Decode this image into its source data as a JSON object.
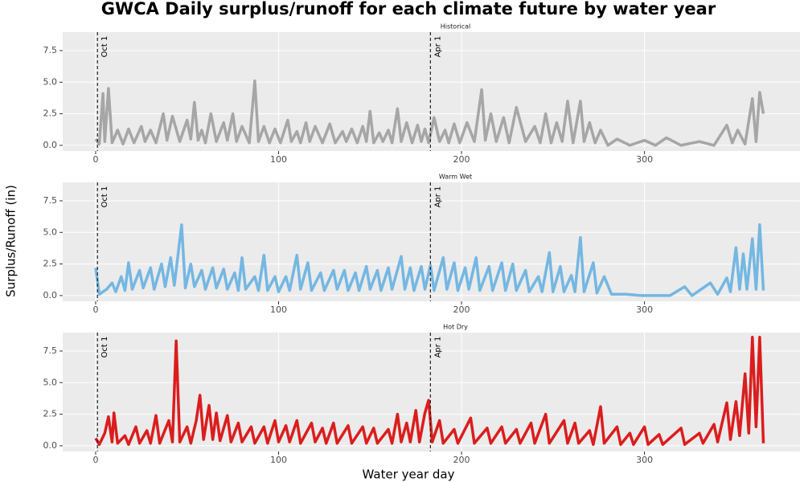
{
  "title": "GWCA Daily surplus/runoff for each climate future by water year",
  "x_label": "Water year day",
  "y_label": "Surplus/Runoff (in)",
  "chart_data": [
    {
      "type": "line",
      "title": "Historical",
      "color": "#a6a6a6",
      "xlim": [
        -18,
        385
      ],
      "ylim": [
        -0.45,
        8.96
      ],
      "xticks": [
        0,
        100,
        200,
        300
      ],
      "yticks": [
        {
          "value": 0,
          "label": "0.0"
        },
        2.5,
        {
          "value": 5,
          "label": "5.0"
        },
        7.5
      ],
      "grid": true,
      "vlines": [
        {
          "x": 1,
          "label": "Oct 1"
        },
        {
          "x": 183,
          "label": "Apr 1"
        }
      ],
      "x": [
        0,
        2,
        4,
        5,
        7,
        9,
        12,
        15,
        18,
        21,
        25,
        27,
        30,
        33,
        37,
        39,
        42,
        46,
        50,
        52,
        54,
        56,
        58,
        60,
        63,
        66,
        70,
        72,
        75,
        77,
        80,
        84,
        87,
        89,
        92,
        95,
        98,
        101,
        105,
        107,
        110,
        112,
        115,
        117,
        120,
        124,
        128,
        131,
        135,
        137,
        140,
        143,
        146,
        148,
        150,
        152,
        155,
        157,
        160,
        162,
        165,
        167,
        170,
        173,
        176,
        178,
        180,
        182,
        185,
        188,
        191,
        193,
        196,
        199,
        203,
        207,
        211,
        213,
        216,
        219,
        223,
        226,
        230,
        235,
        240,
        243,
        246,
        249,
        252,
        255,
        258,
        261,
        265,
        267,
        270,
        273,
        276,
        280,
        285,
        292,
        300,
        306,
        312,
        320,
        330,
        338,
        345,
        348,
        351,
        355,
        359,
        361,
        363,
        365
      ],
      "values": [
        0.5,
        0.1,
        4.1,
        0.3,
        4.5,
        0.2,
        1.2,
        0.1,
        1.3,
        0.2,
        1.5,
        0.3,
        1.2,
        0.2,
        2.5,
        0.4,
        2.3,
        0.3,
        2.0,
        0.5,
        3.4,
        0.4,
        1.2,
        0.2,
        2.5,
        0.3,
        1.8,
        0.4,
        2.5,
        0.3,
        1.5,
        0.2,
        5.1,
        0.3,
        1.5,
        0.2,
        1.3,
        0.2,
        2.0,
        0.3,
        1.1,
        0.2,
        1.8,
        0.3,
        1.5,
        0.2,
        1.7,
        0.2,
        1.1,
        0.3,
        1.3,
        0.2,
        1.5,
        0.3,
        2.7,
        0.2,
        1.0,
        0.3,
        1.2,
        0.2,
        2.9,
        0.3,
        1.8,
        0.2,
        1.6,
        0.3,
        1.3,
        0.2,
        2.2,
        0.3,
        1.2,
        0.2,
        1.7,
        0.2,
        1.8,
        0.3,
        4.4,
        0.4,
        2.5,
        0.3,
        2.2,
        0.2,
        3.0,
        0.3,
        1.5,
        0.2,
        2.5,
        0.2,
        1.8,
        0.3,
        3.5,
        0.2,
        3.5,
        0.3,
        1.8,
        0.2,
        1.2,
        0.0,
        0.5,
        0.0,
        0.4,
        0.0,
        0.6,
        0.0,
        0.3,
        0.0,
        1.6,
        0.2,
        1.2,
        0.1,
        3.7,
        0.3,
        4.2,
        2.5
      ]
    },
    {
      "type": "line",
      "title": "Warm Wet",
      "color": "#74b7e2",
      "xlim": [
        -18,
        385
      ],
      "ylim": [
        -0.45,
        8.96
      ],
      "xticks": [
        0,
        100,
        200,
        300
      ],
      "yticks": [
        {
          "value": 0,
          "label": "0.0"
        },
        2.5,
        {
          "value": 5,
          "label": "5.0"
        },
        7.5
      ],
      "grid": true,
      "vlines": [
        {
          "x": 1,
          "label": "Oct 1"
        },
        {
          "x": 183,
          "label": "Apr 1"
        }
      ],
      "x": [
        0,
        2,
        6,
        9,
        11,
        14,
        16,
        18,
        20,
        24,
        26,
        30,
        32,
        36,
        38,
        41,
        43,
        47,
        49,
        52,
        54,
        58,
        60,
        64,
        66,
        70,
        72,
        76,
        78,
        80,
        82,
        87,
        89,
        92,
        94,
        98,
        100,
        104,
        106,
        110,
        112,
        116,
        118,
        123,
        125,
        130,
        132,
        136,
        138,
        142,
        144,
        148,
        150,
        154,
        156,
        160,
        162,
        167,
        169,
        172,
        174,
        178,
        180,
        183,
        185,
        190,
        192,
        196,
        198,
        202,
        204,
        208,
        210,
        215,
        217,
        222,
        224,
        228,
        230,
        235,
        237,
        242,
        244,
        248,
        250,
        254,
        256,
        260,
        262,
        265,
        267,
        272,
        274,
        278,
        282,
        290,
        298,
        306,
        314,
        322,
        326,
        336,
        340,
        345,
        347,
        350,
        352,
        354,
        356,
        359,
        361,
        363,
        365
      ],
      "values": [
        2.2,
        0.1,
        0.5,
        1.0,
        0.3,
        1.5,
        0.4,
        2.6,
        0.5,
        2.0,
        0.6,
        2.2,
        0.5,
        2.5,
        0.7,
        3.0,
        0.8,
        5.6,
        0.6,
        2.5,
        0.7,
        2.0,
        0.5,
        2.2,
        0.6,
        2.1,
        0.5,
        1.8,
        0.4,
        3.0,
        0.5,
        1.5,
        0.4,
        3.2,
        0.4,
        1.5,
        0.3,
        1.5,
        0.4,
        3.2,
        0.5,
        2.6,
        0.4,
        1.8,
        0.4,
        2.0,
        0.5,
        2.0,
        0.4,
        1.8,
        0.4,
        2.3,
        0.5,
        2.0,
        0.4,
        2.2,
        0.5,
        3.1,
        0.5,
        2.2,
        0.4,
        2.3,
        0.5,
        2.4,
        0.4,
        3.0,
        0.5,
        2.6,
        0.4,
        2.2,
        0.5,
        3.0,
        0.4,
        2.3,
        0.4,
        2.6,
        0.4,
        2.5,
        0.4,
        2.0,
        0.3,
        1.5,
        0.3,
        3.4,
        0.3,
        2.3,
        0.3,
        1.6,
        0.3,
        4.6,
        0.3,
        2.6,
        0.2,
        1.5,
        0.1,
        0.1,
        0.0,
        0.0,
        0.0,
        0.7,
        0.0,
        1.0,
        0.1,
        1.4,
        0.3,
        3.8,
        0.5,
        3.3,
        0.5,
        4.5,
        0.5,
        5.6,
        0.4
      ]
    },
    {
      "type": "line",
      "title": "Hot Dry",
      "color": "#db1d1d",
      "xlim": [
        -18,
        385
      ],
      "ylim": [
        -0.45,
        8.96
      ],
      "xticks": [
        0,
        100,
        200,
        300
      ],
      "yticks": [
        {
          "value": 0,
          "label": "0.0"
        },
        2.5,
        {
          "value": 5,
          "label": "5.0"
        },
        7.5
      ],
      "grid": true,
      "vlines": [
        {
          "x": 1,
          "label": "Oct 1"
        },
        {
          "x": 183,
          "label": "Apr 1"
        }
      ],
      "x": [
        0,
        2,
        5,
        7,
        9,
        10,
        12,
        16,
        18,
        22,
        24,
        28,
        30,
        33,
        35,
        40,
        42,
        44,
        46,
        50,
        52,
        55,
        57,
        59,
        62,
        64,
        66,
        68,
        72,
        74,
        78,
        80,
        85,
        87,
        92,
        94,
        98,
        100,
        104,
        106,
        110,
        112,
        118,
        120,
        124,
        126,
        130,
        132,
        138,
        140,
        146,
        148,
        152,
        154,
        160,
        162,
        165,
        167,
        170,
        172,
        175,
        177,
        180,
        182,
        184,
        188,
        190,
        196,
        198,
        205,
        207,
        214,
        216,
        222,
        224,
        230,
        232,
        238,
        240,
        246,
        248,
        256,
        258,
        262,
        264,
        270,
        272,
        276,
        278,
        285,
        287,
        292,
        294,
        300,
        302,
        308,
        310,
        320,
        322,
        330,
        332,
        338,
        340,
        345,
        347,
        350,
        352,
        355,
        357,
        359,
        361,
        363,
        365
      ],
      "values": [
        0.6,
        0.1,
        1.0,
        2.3,
        0.3,
        2.6,
        0.2,
        0.8,
        0.1,
        1.5,
        0.2,
        1.2,
        0.2,
        2.4,
        0.2,
        2.0,
        0.3,
        8.3,
        0.3,
        1.5,
        0.2,
        2.0,
        4.0,
        0.5,
        3.2,
        0.5,
        2.6,
        0.4,
        2.4,
        0.3,
        1.8,
        0.3,
        1.5,
        0.2,
        1.5,
        0.2,
        2.0,
        0.3,
        1.6,
        0.3,
        2.0,
        0.2,
        1.8,
        0.3,
        1.4,
        0.2,
        1.8,
        0.2,
        1.6,
        0.2,
        1.5,
        0.2,
        1.4,
        0.2,
        1.3,
        0.2,
        2.5,
        0.3,
        1.8,
        0.3,
        2.8,
        0.3,
        2.6,
        3.6,
        0.3,
        2.0,
        0.2,
        1.3,
        0.2,
        2.2,
        0.2,
        1.4,
        0.2,
        1.5,
        0.2,
        1.3,
        0.2,
        1.8,
        0.2,
        2.5,
        0.2,
        2.0,
        0.2,
        1.8,
        0.2,
        1.2,
        0.1,
        3.1,
        0.2,
        1.5,
        0.1,
        1.0,
        0.1,
        1.5,
        0.1,
        0.9,
        0.1,
        1.4,
        0.1,
        1.0,
        0.2,
        1.7,
        0.3,
        3.4,
        0.5,
        3.5,
        0.8,
        5.7,
        1.0,
        8.6,
        1.5,
        8.6,
        0.2
      ]
    }
  ]
}
